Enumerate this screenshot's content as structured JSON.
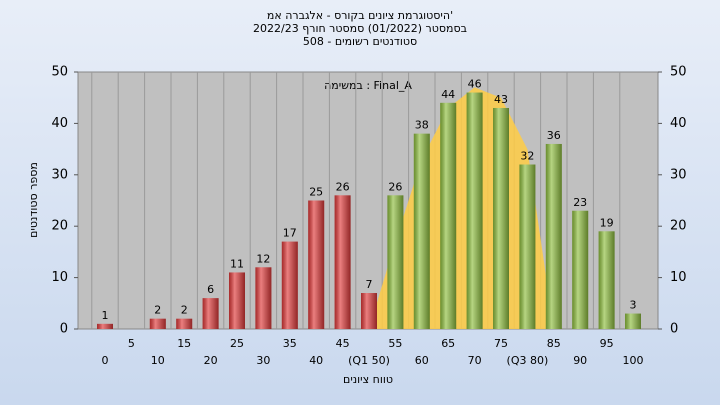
{
  "chart_data": {
    "type": "bar",
    "title": [
      "היסטוגרמת ציונים בקורס - אלגברה אמ'",
      "בסמסטר  (01/2022)  סמסטר חורף 2022/23",
      "סטודנטים רשומים - 508"
    ],
    "annotation": "במשימה : Final_A",
    "x_label": "טווח ציונים",
    "y_label": "מספר סטודנטים",
    "categories": [
      "0",
      "5",
      "10",
      "15",
      "20",
      "25",
      "30",
      "35",
      "40",
      "45",
      "(Q1 50)",
      "55",
      "60",
      "65",
      "70",
      "75",
      "(Q3 80)",
      "85",
      "90",
      "95",
      "100"
    ],
    "values": [
      1,
      null,
      2,
      2,
      6,
      11,
      12,
      17,
      25,
      26,
      7,
      26,
      38,
      44,
      46,
      43,
      32,
      36,
      23,
      19,
      3
    ],
    "colors": [
      "#e03a3a",
      "#e03a3a",
      "#e03a3a",
      "#e03a3a",
      "#e03a3a",
      "#e03a3a",
      "#e03a3a",
      "#e03a3a",
      "#e03a3a",
      "#e03a3a",
      "#e03a3a",
      "#8fbf3f",
      "#8fbf3f",
      "#8fbf3f",
      "#8fbf3f",
      "#8fbf3f",
      "#8fbf3f",
      "#8fbf3f",
      "#8fbf3f",
      "#8fbf3f",
      "#8fbf3f"
    ],
    "fit_curve": {
      "color": "#ffcc44",
      "values": [
        null,
        null,
        null,
        null,
        null,
        null,
        null,
        null,
        null,
        null,
        0,
        17,
        33,
        43,
        47,
        45,
        35,
        0,
        null,
        null,
        null
      ]
    },
    "ylim": [
      0,
      50
    ],
    "yticks": [
      0,
      10,
      20,
      30,
      40,
      50
    ],
    "y2lim": [
      0,
      50
    ],
    "y2ticks": [
      0,
      10,
      20,
      30,
      40,
      50
    ],
    "grid": "vertical"
  }
}
